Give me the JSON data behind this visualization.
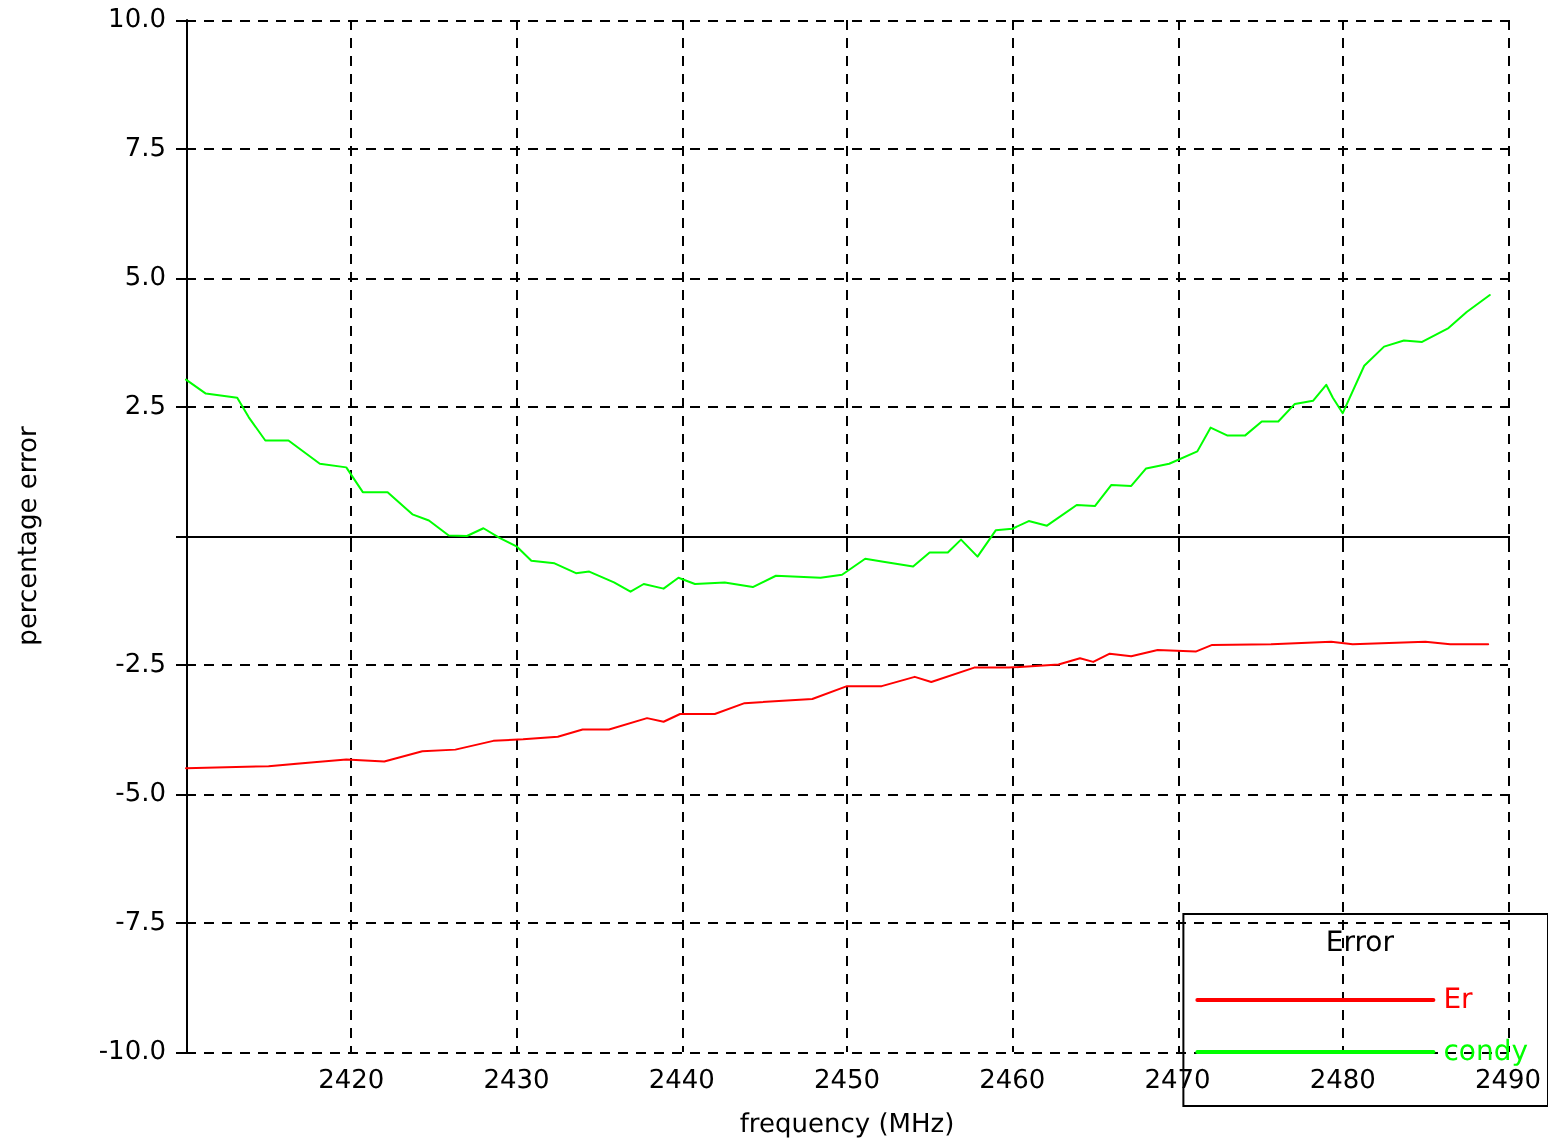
{
  "chart_data": {
    "type": "line",
    "xlabel": "frequency (MHz)",
    "ylabel": "percentage error",
    "legend_title": "Error",
    "legend": "bottom right",
    "grid": true,
    "marker": "none",
    "line_style": "solid",
    "xlim": [
      2410,
      2490
    ],
    "xticks": [
      2420,
      2430,
      2440,
      2450,
      2460,
      2470,
      2480,
      2490
    ],
    "ylim": [
      -10,
      10
    ],
    "yticks": [
      {
        "value": -10,
        "label": "-10.0"
      },
      -7.5,
      {
        "value": -5,
        "label": "-5.0"
      },
      -2.5,
      {
        "value": 0,
        "label": null
      },
      2.5,
      {
        "value": 5,
        "label": "5.0"
      },
      7.5,
      {
        "value": 10,
        "label": "10.0"
      }
    ],
    "series": [
      {
        "name": "Er",
        "color": "#ff0000",
        "x": [
          2410,
          2415,
          2419.7,
          2422,
          2424.3,
          2426.3,
          2428.6,
          2430.4,
          2432.5,
          2434,
          2435.6,
          2437.9,
          2438.9,
          2439.9,
          2442,
          2443.8,
          2447.9,
          2450,
          2452.1,
          2454.1,
          2455.1,
          2457.7,
          2459.8,
          2462.8,
          2464.1,
          2464.9,
          2465.9,
          2467.2,
          2468.8,
          2471.1,
          2472.1,
          2475.7,
          2479.3,
          2480.6,
          2485,
          2486.5,
          2488.8
        ],
        "values": [
          -4.5,
          -4.46,
          -4.33,
          -4.37,
          -4.17,
          -4.14,
          -3.97,
          -3.94,
          -3.89,
          -3.75,
          -3.75,
          -3.53,
          -3.6,
          -3.45,
          -3.45,
          -3.24,
          -3.16,
          -2.91,
          -2.91,
          -2.73,
          -2.83,
          -2.55,
          -2.55,
          -2.49,
          -2.37,
          -2.44,
          -2.28,
          -2.33,
          -2.21,
          -2.24,
          -2.11,
          -2.1,
          -2.05,
          -2.1,
          -2.05,
          -2.1,
          -2.1
        ]
      },
      {
        "name": "condy",
        "color": "#00ff00",
        "x": [
          2410,
          2411.2,
          2413.1,
          2413.8,
          2414.8,
          2416.2,
          2418.1,
          2419.7,
          2420.7,
          2422.2,
          2423.7,
          2424.7,
          2425.9,
          2427,
          2428,
          2429,
          2430,
          2430.9,
          2432.3,
          2433.6,
          2434.4,
          2435.9,
          2436.9,
          2437.7,
          2438.9,
          2439.8,
          2440.8,
          2442.6,
          2444.3,
          2445.7,
          2448.4,
          2449.7,
          2451.1,
          2452.2,
          2454,
          2455,
          2456.1,
          2456.9,
          2457.9,
          2459,
          2460,
          2461,
          2462.1,
          2463.9,
          2465,
          2466,
          2467.2,
          2468.1,
          2469.5,
          2471.2,
          2472,
          2473,
          2474.1,
          2475.1,
          2476.1,
          2477.1,
          2478.2,
          2479,
          2479.4,
          2480,
          2481.3,
          2482.5,
          2483.7,
          2484.8,
          2486.4,
          2487.5,
          2488.9
        ],
        "values": [
          3.03,
          2.76,
          2.68,
          2.3,
          1.85,
          1.85,
          1.4,
          1.33,
          0.85,
          0.85,
          0.42,
          0.3,
          0.01,
          0,
          0.15,
          -0.04,
          -0.2,
          -0.48,
          -0.53,
          -0.72,
          -0.69,
          -0.9,
          -1.08,
          -0.93,
          -1.02,
          -0.81,
          -0.93,
          -0.9,
          -0.99,
          -0.77,
          -0.81,
          -0.75,
          -0.44,
          -0.5,
          -0.59,
          -0.32,
          -0.32,
          -0.07,
          -0.4,
          0.11,
          0.14,
          0.29,
          0.2,
          0.6,
          0.58,
          0.99,
          0.97,
          1.31,
          1.4,
          1.64,
          2.1,
          1.95,
          1.95,
          2.22,
          2.22,
          2.56,
          2.62,
          2.93,
          2.68,
          2.38,
          3.3,
          3.67,
          3.79,
          3.76,
          4.03,
          4.34,
          4.67
        ]
      }
    ]
  }
}
